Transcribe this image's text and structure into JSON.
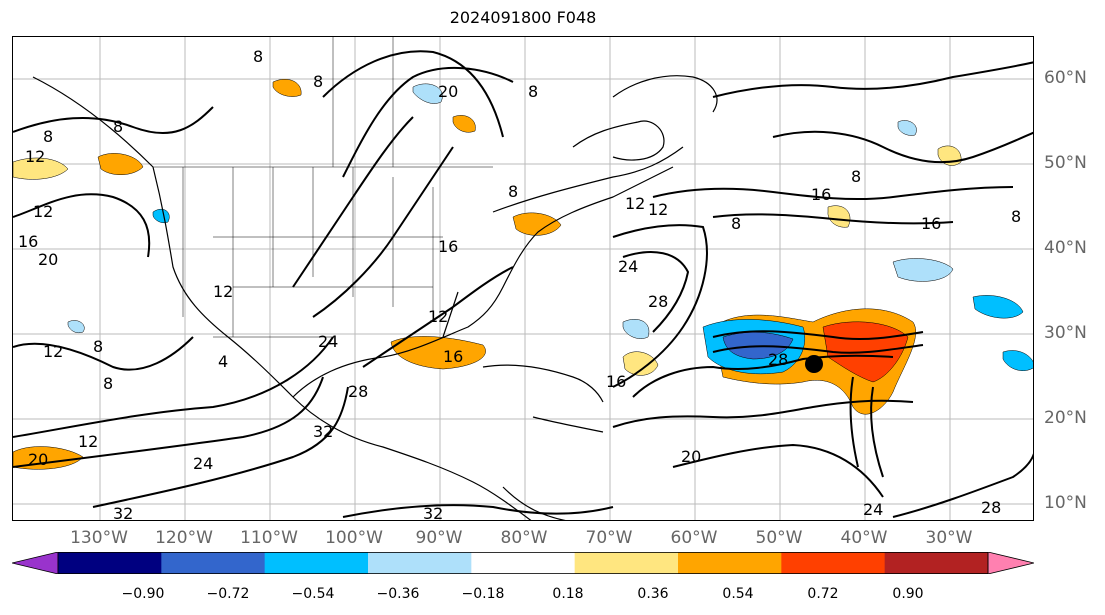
{
  "title": "2024091800 F048",
  "lon_labels": [
    "130°W",
    "120°W",
    "110°W",
    "100°W",
    "90°W",
    "80°W",
    "70°W",
    "60°W",
    "50°W",
    "40°W",
    "30°W"
  ],
  "lat_labels": [
    "60°N",
    "50°N",
    "40°N",
    "30°N",
    "20°N",
    "10°N"
  ],
  "colorbar": {
    "ticks": [
      "−0.90",
      "−0.72",
      "−0.54",
      "−0.36",
      "−0.18",
      "0.18",
      "0.36",
      "0.54",
      "0.72",
      "0.90"
    ],
    "colors": [
      "#9933cc",
      "#000080",
      "#3366cc",
      "#00bfff",
      "#aee0fa",
      "#ffffff",
      "#ffe680",
      "#ffa500",
      "#ff4000",
      "#b22222",
      "#ff80b0"
    ]
  },
  "contour_labels": {
    "l8a": "8",
    "l12a": "12",
    "l16a": "16",
    "l8b": "8",
    "l12b": "12",
    "l8c": "8",
    "l8d": "8",
    "l8e": "8",
    "l20a": "20",
    "l12c": "12",
    "l8f": "8",
    "l12d": "12",
    "l4a": "4",
    "l16b": "16",
    "l8g": "8",
    "l12e": "12",
    "l16c": "16",
    "l24a": "24",
    "l8h": "8",
    "l28a": "28",
    "l32a": "32",
    "l12f": "12",
    "l20b": "20",
    "l24b": "24",
    "l32b": "32",
    "l32c": "32",
    "l20c": "20",
    "l16d": "16",
    "l24c": "24",
    "l28b": "28",
    "l12g": "12",
    "l12h": "12",
    "l8i": "8",
    "l8j": "8",
    "l16e": "16",
    "l16f": "16",
    "l8k": "8",
    "l28c": "28",
    "l24d": "24",
    "l28d": "28",
    "l20d": "20"
  },
  "storm_marker": "tropical-cyclone-center"
}
